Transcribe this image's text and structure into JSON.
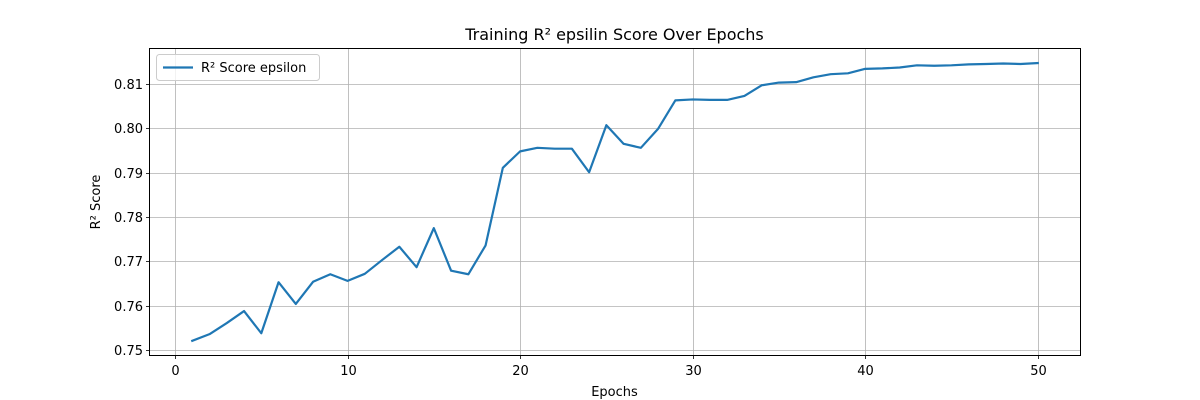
{
  "chart_data": {
    "type": "line",
    "title": "Training R² epsilin Score Over Epochs",
    "xlabel": "Epochs",
    "ylabel": "R² Score",
    "xlim": [
      -1.45,
      52.45
    ],
    "ylim": [
      0.7489,
      0.8181
    ],
    "xticks": [
      0,
      10,
      20,
      30,
      40,
      50
    ],
    "yticks": [
      0.75,
      0.76,
      0.77,
      0.78,
      0.79,
      0.8,
      0.81
    ],
    "xtick_labels": [
      "0",
      "10",
      "20",
      "30",
      "40",
      "50"
    ],
    "ytick_labels": [
      "0.75",
      "0.76",
      "0.77",
      "0.78",
      "0.79",
      "0.80",
      "0.81"
    ],
    "grid": true,
    "legend_position": "top-left",
    "series": [
      {
        "name": "R² Score epsilon",
        "color": "#1f77b4",
        "x": [
          1,
          2,
          3,
          4,
          5,
          6,
          7,
          8,
          9,
          10,
          11,
          12,
          13,
          14,
          15,
          16,
          17,
          18,
          19,
          20,
          21,
          22,
          23,
          24,
          25,
          26,
          27,
          28,
          29,
          30,
          31,
          32,
          33,
          34,
          35,
          36,
          37,
          38,
          39,
          40,
          41,
          42,
          43,
          44,
          45,
          46,
          47,
          48,
          49,
          50
        ],
        "y": [
          0.7521,
          0.7536,
          0.7561,
          0.7588,
          0.7538,
          0.7653,
          0.7604,
          0.7654,
          0.7671,
          0.7656,
          0.7672,
          0.7703,
          0.7733,
          0.7687,
          0.7775,
          0.7679,
          0.7671,
          0.7736,
          0.7911,
          0.7948,
          0.7956,
          0.7954,
          0.7954,
          0.7901,
          0.8007,
          0.7965,
          0.7956,
          0.7999,
          0.8063,
          0.8065,
          0.8064,
          0.8064,
          0.8073,
          0.8097,
          0.8103,
          0.8104,
          0.8115,
          0.8122,
          0.8124,
          0.8134,
          0.8135,
          0.8137,
          0.8142,
          0.8141,
          0.8142,
          0.8144,
          0.8145,
          0.8146,
          0.8145,
          0.8147
        ]
      }
    ]
  }
}
